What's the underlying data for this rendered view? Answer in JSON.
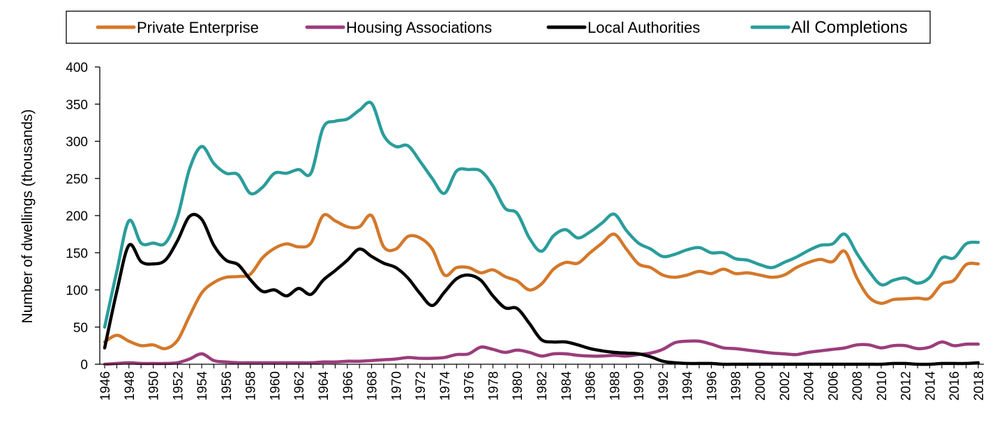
{
  "chart_data": {
    "type": "line",
    "title": "",
    "xlabel": "",
    "ylabel": "Number  of dwellings  (thousands)",
    "ylim": [
      0,
      400
    ],
    "y_ticks": [
      "0",
      "50",
      "100",
      "150",
      "200",
      "250",
      "300",
      "350",
      "400"
    ],
    "x": [
      1946,
      1947,
      1948,
      1949,
      1950,
      1951,
      1952,
      1953,
      1954,
      1955,
      1956,
      1957,
      1958,
      1959,
      1960,
      1961,
      1962,
      1963,
      1964,
      1965,
      1966,
      1967,
      1968,
      1969,
      1970,
      1971,
      1972,
      1973,
      1974,
      1975,
      1976,
      1977,
      1978,
      1979,
      1980,
      1981,
      1982,
      1983,
      1984,
      1985,
      1986,
      1987,
      1988,
      1989,
      1990,
      1991,
      1992,
      1993,
      1994,
      1995,
      1996,
      1997,
      1998,
      1999,
      2000,
      2001,
      2002,
      2003,
      2004,
      2005,
      2006,
      2007,
      2008,
      2009,
      2010,
      2011,
      2012,
      2013,
      2014,
      2015,
      2016,
      2017,
      2018
    ],
    "x_tick_labels": [
      "1946",
      "1948",
      "1950",
      "1952",
      "1954",
      "1956",
      "1958",
      "1960",
      "1962",
      "1964",
      "1966",
      "1968",
      "1970",
      "1972",
      "1974",
      "1976",
      "1978",
      "1980",
      "1982",
      "1984",
      "1986",
      "1988",
      "1990",
      "1992",
      "1994",
      "1996",
      "1998",
      "2000",
      "2002",
      "2004",
      "2006",
      "2008",
      "2010",
      "2012",
      "2014",
      "2016",
      "2018"
    ],
    "grid": false,
    "legend_position": "top",
    "series": [
      {
        "name": "Private Enterprise",
        "color": "#d4782a",
        "values": [
          30,
          39,
          31,
          25,
          26,
          21,
          32,
          65,
          96,
          110,
          117,
          118,
          121,
          143,
          156,
          162,
          158,
          163,
          200,
          193,
          185,
          185,
          200,
          158,
          155,
          172,
          170,
          155,
          120,
          130,
          130,
          123,
          127,
          118,
          112,
          100,
          108,
          128,
          137,
          136,
          150,
          163,
          175,
          155,
          135,
          130,
          120,
          117,
          120,
          125,
          122,
          128,
          122,
          123,
          120,
          117,
          120,
          130,
          137,
          141,
          138,
          152,
          116,
          90,
          82,
          87,
          88,
          89,
          89,
          108,
          113,
          134,
          135
        ]
      },
      {
        "name": "Housing Associations",
        "color": "#9b3d7c",
        "values": [
          0,
          1,
          2,
          1,
          1,
          1,
          2,
          7,
          14,
          5,
          3,
          2,
          2,
          2,
          2,
          2,
          2,
          2,
          3,
          3,
          4,
          4,
          5,
          6,
          7,
          9,
          8,
          8,
          9,
          13,
          14,
          23,
          20,
          16,
          19,
          16,
          11,
          14,
          14,
          12,
          11,
          11,
          12,
          11,
          13,
          15,
          20,
          29,
          31,
          31,
          27,
          22,
          21,
          19,
          17,
          15,
          14,
          13,
          16,
          18,
          20,
          22,
          26,
          26,
          22,
          25,
          25,
          21,
          23,
          30,
          25,
          27,
          27
        ]
      },
      {
        "name": "Local Authorities",
        "color": "#000000",
        "values": [
          22,
          98,
          160,
          138,
          135,
          140,
          166,
          199,
          195,
          160,
          140,
          134,
          114,
          98,
          100,
          92,
          102,
          94,
          113,
          126,
          140,
          155,
          145,
          136,
          130,
          116,
          95,
          79,
          97,
          115,
          120,
          113,
          92,
          76,
          75,
          55,
          33,
          30,
          30,
          26,
          21,
          18,
          16,
          15,
          14,
          10,
          4,
          2,
          1,
          1,
          1,
          0,
          0,
          0,
          0,
          0,
          0,
          0,
          0,
          0,
          0,
          0,
          0,
          0,
          0,
          1,
          1,
          0,
          0,
          1,
          1,
          1,
          2
        ]
      },
      {
        "name": "All Completions",
        "color": "#2a9d9b",
        "values": [
          50,
          125,
          193,
          163,
          163,
          163,
          198,
          263,
          293,
          270,
          257,
          255,
          230,
          238,
          257,
          257,
          262,
          257,
          318,
          327,
          330,
          342,
          351,
          308,
          293,
          294,
          273,
          250,
          230,
          260,
          262,
          260,
          240,
          210,
          203,
          170,
          152,
          173,
          181,
          170,
          178,
          190,
          202,
          180,
          163,
          155,
          145,
          148,
          154,
          157,
          150,
          150,
          142,
          140,
          134,
          130,
          137,
          144,
          153,
          160,
          162,
          175,
          149,
          125,
          107,
          113,
          116,
          109,
          117,
          143,
          143,
          162,
          164
        ]
      }
    ]
  }
}
